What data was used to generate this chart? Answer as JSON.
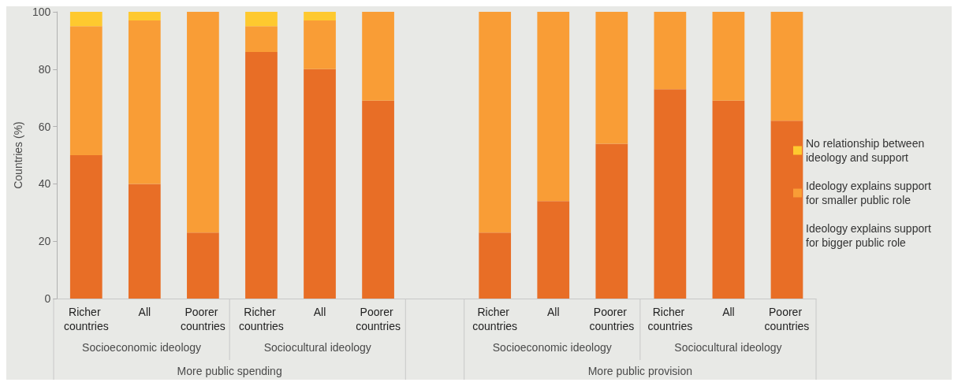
{
  "chart_data": {
    "type": "bar",
    "stacked": true,
    "ylabel": "Countries (%)",
    "categories": [
      "Richer countries",
      "All",
      "Poorer countries",
      "Richer countries",
      "All",
      "Poorer countries",
      null,
      "Richer countries",
      "All",
      "Poorer countries",
      "Richer countries",
      "All",
      "Poorer countries"
    ],
    "series": [
      {
        "name": "Ideology explains support for bigger public role",
        "color": "#e86e26",
        "values": [
          50,
          40,
          23,
          86,
          80,
          69,
          null,
          23,
          34,
          54,
          73,
          69,
          62
        ]
      },
      {
        "name": "Ideology explains support for smaller public role",
        "color": "#f99d36",
        "values": [
          45,
          57,
          77,
          9,
          17,
          31,
          null,
          77,
          66,
          46,
          27,
          31,
          38
        ]
      },
      {
        "name": "No relationship between ideology and support",
        "color": "#fec92f",
        "values": [
          5,
          3,
          0,
          5,
          3,
          0,
          null,
          0,
          0,
          0,
          0,
          0,
          0
        ]
      }
    ],
    "ylim": [
      0,
      100
    ],
    "yticks": [
      0,
      20,
      40,
      60,
      80,
      100
    ],
    "grid": false,
    "legend": "right",
    "annotations": [
      "Socioeconomic ideology",
      "Sociocultural ideology",
      "Socioeconomic ideology",
      "Sociocultural ideology",
      "More public spending",
      "More public provision"
    ]
  }
}
